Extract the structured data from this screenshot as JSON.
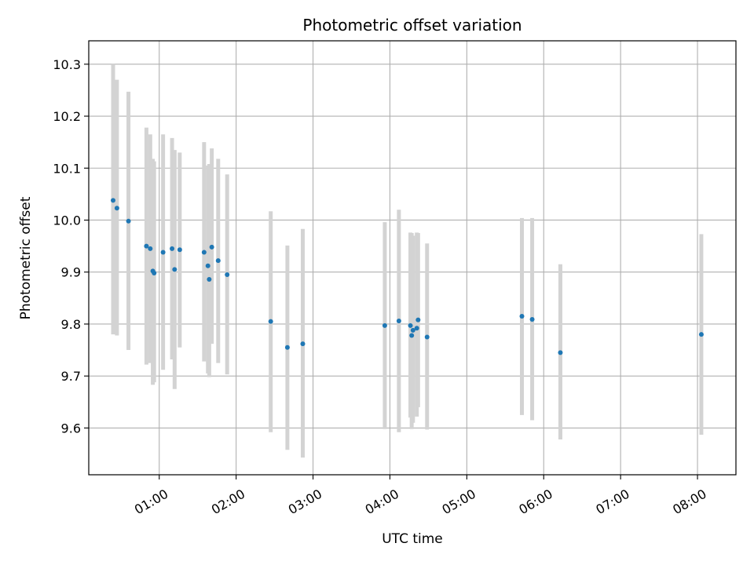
{
  "chart_data": {
    "type": "scatter",
    "title": "Photometric offset variation",
    "xlabel": "UTC time",
    "ylabel": "Photometric offset",
    "x_type": "time",
    "xlim": [
      "00:05",
      "08:30"
    ],
    "ylim": [
      9.51,
      10.345
    ],
    "x_ticks": [
      "01:00",
      "02:00",
      "03:00",
      "04:00",
      "05:00",
      "06:00",
      "07:00",
      "08:00"
    ],
    "y_ticks": [
      "9.6",
      "9.7",
      "9.8",
      "9.9",
      "10.0",
      "10.1",
      "10.2",
      "10.3"
    ],
    "grid": true,
    "legend": "none",
    "colors": {
      "point": "#1f77b4",
      "errorbar": "#d3d3d3",
      "grid": "#b0b0b0"
    },
    "points": [
      {
        "x": "00:24",
        "y": 10.038,
        "ylow": 9.78,
        "yhigh": 10.3
      },
      {
        "x": "00:27",
        "y": 10.023,
        "ylow": 9.778,
        "yhigh": 10.27
      },
      {
        "x": "00:36",
        "y": 9.998,
        "ylow": 9.75,
        "yhigh": 10.247
      },
      {
        "x": "00:50",
        "y": 9.95,
        "ylow": 9.722,
        "yhigh": 10.178
      },
      {
        "x": "00:53",
        "y": 9.945,
        "ylow": 9.725,
        "yhigh": 10.165
      },
      {
        "x": "00:55",
        "y": 9.902,
        "ylow": 9.683,
        "yhigh": 10.118
      },
      {
        "x": "00:56",
        "y": 9.898,
        "ylow": 9.688,
        "yhigh": 10.113
      },
      {
        "x": "01:03",
        "y": 9.938,
        "ylow": 9.712,
        "yhigh": 10.165
      },
      {
        "x": "01:10",
        "y": 9.945,
        "ylow": 9.732,
        "yhigh": 10.158
      },
      {
        "x": "01:12",
        "y": 9.905,
        "ylow": 9.675,
        "yhigh": 10.135
      },
      {
        "x": "01:16",
        "y": 9.943,
        "ylow": 9.755,
        "yhigh": 10.13
      },
      {
        "x": "01:35",
        "y": 9.938,
        "ylow": 9.728,
        "yhigh": 10.15
      },
      {
        "x": "01:38",
        "y": 9.912,
        "ylow": 9.705,
        "yhigh": 10.105
      },
      {
        "x": "01:39",
        "y": 9.886,
        "ylow": 9.698,
        "yhigh": 10.108
      },
      {
        "x": "01:41",
        "y": 9.948,
        "ylow": 9.762,
        "yhigh": 10.138
      },
      {
        "x": "01:46",
        "y": 9.922,
        "ylow": 9.725,
        "yhigh": 10.118
      },
      {
        "x": "01:53",
        "y": 9.895,
        "ylow": 9.703,
        "yhigh": 10.088
      },
      {
        "x": "02:27",
        "y": 9.805,
        "ylow": 9.592,
        "yhigh": 10.017
      },
      {
        "x": "02:40",
        "y": 9.755,
        "ylow": 9.558,
        "yhigh": 9.951
      },
      {
        "x": "02:52",
        "y": 9.762,
        "ylow": 9.543,
        "yhigh": 9.983
      },
      {
        "x": "03:56",
        "y": 9.797,
        "ylow": 9.598,
        "yhigh": 9.996
      },
      {
        "x": "04:07",
        "y": 9.806,
        "ylow": 9.592,
        "yhigh": 10.02
      },
      {
        "x": "04:16",
        "y": 9.797,
        "ylow": 9.62,
        "yhigh": 9.976
      },
      {
        "x": "04:17",
        "y": 9.778,
        "ylow": 9.598,
        "yhigh": 9.975
      },
      {
        "x": "04:18",
        "y": 9.788,
        "ylow": 9.61,
        "yhigh": 9.97
      },
      {
        "x": "04:21",
        "y": 9.792,
        "ylow": 9.622,
        "yhigh": 9.976
      },
      {
        "x": "04:22",
        "y": 9.808,
        "ylow": 9.64,
        "yhigh": 9.975
      },
      {
        "x": "04:29",
        "y": 9.775,
        "ylow": 9.597,
        "yhigh": 9.955
      },
      {
        "x": "05:43",
        "y": 9.815,
        "ylow": 9.625,
        "yhigh": 10.004
      },
      {
        "x": "05:51",
        "y": 9.809,
        "ylow": 9.615,
        "yhigh": 10.004
      },
      {
        "x": "06:13",
        "y": 9.745,
        "ylow": 9.578,
        "yhigh": 9.915
      },
      {
        "x": "08:03",
        "y": 9.78,
        "ylow": 9.587,
        "yhigh": 9.973
      }
    ]
  }
}
